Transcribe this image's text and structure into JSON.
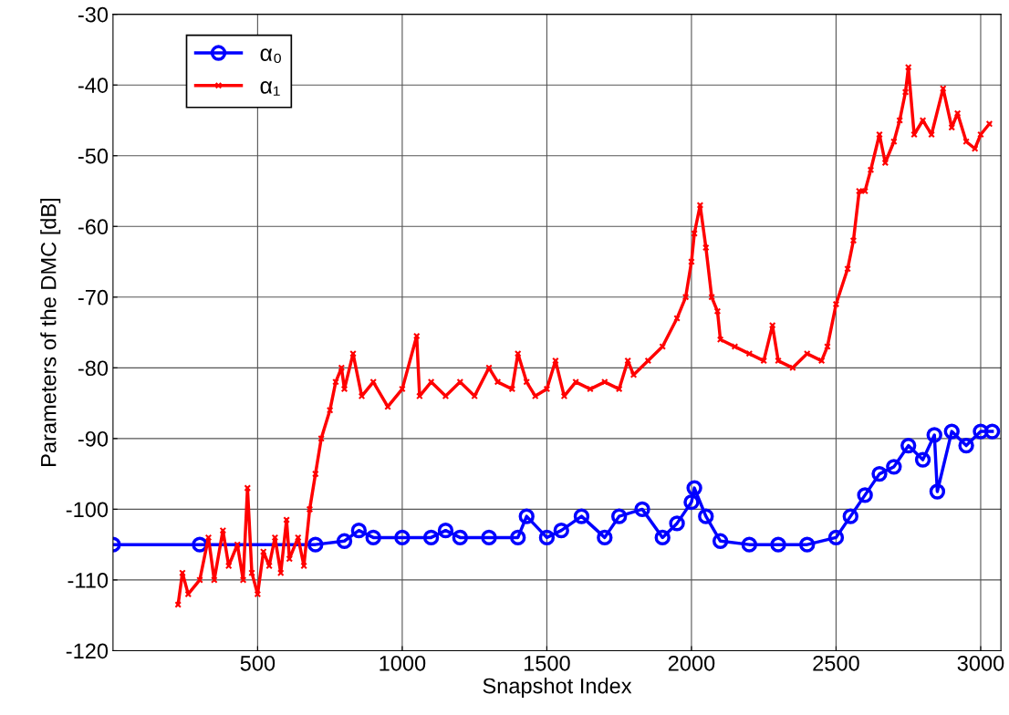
{
  "chart_data": {
    "type": "line",
    "xlabel": "Snapshot Index",
    "ylabel": "Parameters of the DMC [dB]",
    "xlim": [
      0,
      3070
    ],
    "xticks": [
      500,
      1000,
      1500,
      2000,
      2500,
      3000
    ],
    "ylim": [
      -120,
      -30
    ],
    "yticks": [
      -120,
      -110,
      -100,
      -90,
      -80,
      -70,
      -60,
      -50,
      -40,
      -30
    ],
    "grid": true,
    "legend": "top left",
    "series": [
      {
        "name": "α₀",
        "color": "#0000ff",
        "marker": "circle",
        "x": [
          0,
          300,
          700,
          800,
          850,
          900,
          1000,
          1100,
          1150,
          1200,
          1300,
          1400,
          1430,
          1500,
          1550,
          1620,
          1700,
          1750,
          1830,
          1900,
          1950,
          2000,
          2010,
          2050,
          2100,
          2200,
          2300,
          2400,
          2500,
          2550,
          2600,
          2650,
          2700,
          2750,
          2800,
          2840,
          2850,
          2900,
          2950,
          3000,
          3040
        ],
        "values": [
          -105,
          -105,
          -105,
          -104.5,
          -103,
          -104,
          -104,
          -104,
          -103,
          -104,
          -104,
          -104,
          -101,
          -104,
          -103,
          -101,
          -104,
          -101,
          -100,
          -104,
          -102,
          -99,
          -97,
          -101,
          -104.5,
          -105,
          -105,
          -105,
          -104,
          -101,
          -98,
          -95,
          -94,
          -91,
          -93,
          -89.5,
          -97.5,
          -89,
          -91,
          -89,
          -89
        ]
      },
      {
        "name": "α₁",
        "color": "#ff0000",
        "marker": "cross",
        "x": [
          225,
          240,
          260,
          300,
          330,
          350,
          380,
          400,
          430,
          450,
          465,
          480,
          500,
          520,
          540,
          560,
          580,
          600,
          610,
          640,
          660,
          680,
          700,
          720,
          750,
          770,
          790,
          800,
          830,
          860,
          900,
          950,
          1000,
          1050,
          1060,
          1100,
          1150,
          1200,
          1250,
          1300,
          1330,
          1380,
          1400,
          1430,
          1460,
          1500,
          1530,
          1560,
          1600,
          1650,
          1700,
          1750,
          1780,
          1800,
          1850,
          1900,
          1950,
          1980,
          2000,
          2010,
          2030,
          2050,
          2070,
          2090,
          2100,
          2150,
          2200,
          2250,
          2280,
          2300,
          2350,
          2400,
          2450,
          2470,
          2500,
          2540,
          2560,
          2580,
          2600,
          2620,
          2650,
          2670,
          2700,
          2720,
          2740,
          2750,
          2770,
          2800,
          2830,
          2870,
          2900,
          2920,
          2950,
          2980,
          3000,
          3030
        ],
        "values": [
          -113.5,
          -109,
          -112,
          -110,
          -104,
          -110,
          -103,
          -108,
          -105,
          -110,
          -97,
          -109,
          -112,
          -106,
          -108,
          -104,
          -109,
          -101.5,
          -107,
          -104,
          -108,
          -100,
          -95,
          -90,
          -86,
          -82,
          -80,
          -83,
          -78,
          -84,
          -82,
          -85.5,
          -83,
          -75.5,
          -84,
          -82,
          -84,
          -82,
          -84,
          -80,
          -82,
          -83,
          -78,
          -82,
          -84,
          -83,
          -79,
          -84,
          -82,
          -83,
          -82,
          -83,
          -79,
          -81,
          -79,
          -77,
          -73,
          -70,
          -65,
          -61,
          -57,
          -63,
          -70,
          -72,
          -76,
          -77,
          -78,
          -79,
          -74,
          -79,
          -80,
          -78,
          -79,
          -77,
          -71,
          -66,
          -62,
          -55,
          -55,
          -52,
          -47,
          -51,
          -48,
          -45,
          -41,
          -37.5,
          -47,
          -45,
          -47,
          -40.5,
          -46,
          -44,
          -48,
          -49,
          -47,
          -45.5
        ]
      }
    ]
  }
}
